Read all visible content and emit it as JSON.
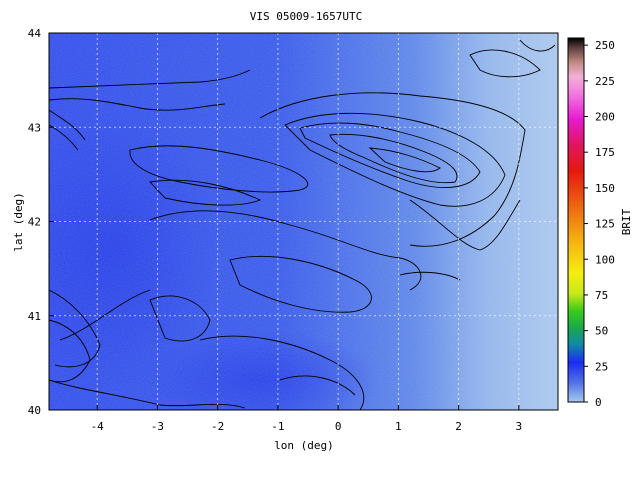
{
  "chart_data": {
    "type": "heatmap",
    "title": "VIS 05009-1657UTC",
    "xlabel": "lon (deg)",
    "ylabel": "lat (deg)",
    "xlim": [
      -4.8,
      3.65
    ],
    "ylim": [
      40,
      44
    ],
    "x_ticks": [
      -4,
      -3,
      -2,
      -1,
      0,
      1,
      2,
      3
    ],
    "y_ticks": [
      40,
      41,
      42,
      43,
      44
    ],
    "grid": true,
    "colorbar": {
      "label": "BRIT",
      "range": [
        0,
        255
      ],
      "ticks": [
        0,
        25,
        50,
        75,
        100,
        125,
        150,
        175,
        200,
        225,
        250
      ],
      "stops": [
        {
          "value": 0,
          "color": "#a7c9ec"
        },
        {
          "value": 14,
          "color": "#4f6fe6"
        },
        {
          "value": 28,
          "color": "#1a2cf0"
        },
        {
          "value": 40,
          "color": "#1188aa"
        },
        {
          "value": 52,
          "color": "#1aa84a"
        },
        {
          "value": 64,
          "color": "#3ccc1a"
        },
        {
          "value": 76,
          "color": "#c8e81a"
        },
        {
          "value": 90,
          "color": "#f4ee10"
        },
        {
          "value": 108,
          "color": "#f6c010"
        },
        {
          "value": 126,
          "color": "#f08a10"
        },
        {
          "value": 144,
          "color": "#ec5010"
        },
        {
          "value": 162,
          "color": "#e41a10"
        },
        {
          "value": 180,
          "color": "#e01560"
        },
        {
          "value": 198,
          "color": "#e81ad0"
        },
        {
          "value": 214,
          "color": "#f070e0"
        },
        {
          "value": 228,
          "color": "#f4b0d8"
        },
        {
          "value": 238,
          "color": "#c08a80"
        },
        {
          "value": 248,
          "color": "#604040"
        },
        {
          "value": 255,
          "color": "#000000"
        }
      ]
    },
    "field_colors": {
      "dark_blue": "#2c49ea",
      "mid_blue": "#4d72e6",
      "light_blue": "#a8c6ec",
      "contour": "#000000",
      "grid": "#ffffff"
    }
  }
}
